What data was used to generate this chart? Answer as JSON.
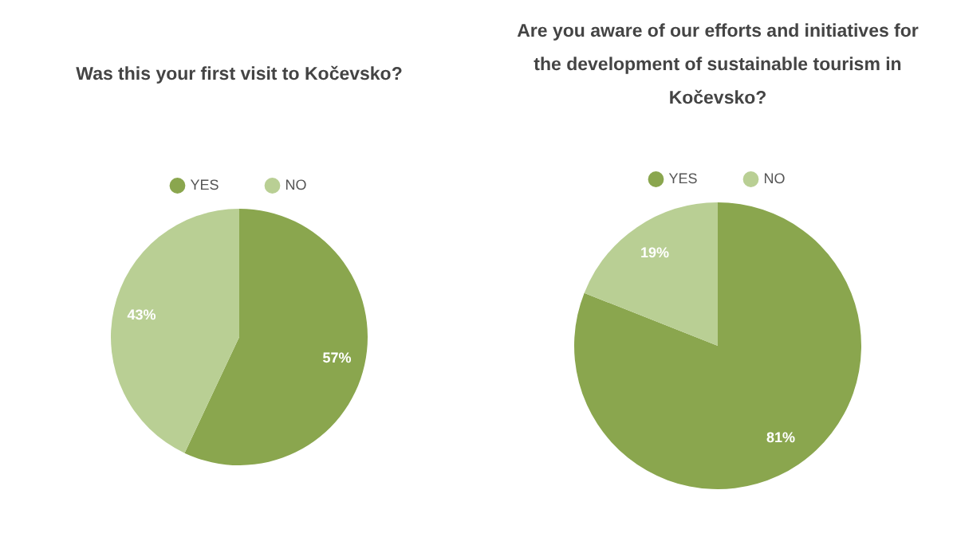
{
  "chart_data": [
    {
      "type": "pie",
      "title": "Was this your first visit to Kočevsko?",
      "categories": [
        "YES",
        "NO"
      ],
      "values": [
        57,
        43
      ],
      "value_labels": [
        "57%",
        "43%"
      ],
      "colors": [
        "#8aa64e",
        "#b9cf94"
      ],
      "legend": "top"
    },
    {
      "type": "pie",
      "title": "Are you aware of our efforts and initiatives for the development of sustainable tourism in Kočevsko?",
      "categories": [
        "YES",
        "NO"
      ],
      "values": [
        81,
        19
      ],
      "value_labels": [
        "81%",
        "19%"
      ],
      "colors": [
        "#8aa64e",
        "#b9cf94"
      ],
      "legend": "top"
    }
  ]
}
